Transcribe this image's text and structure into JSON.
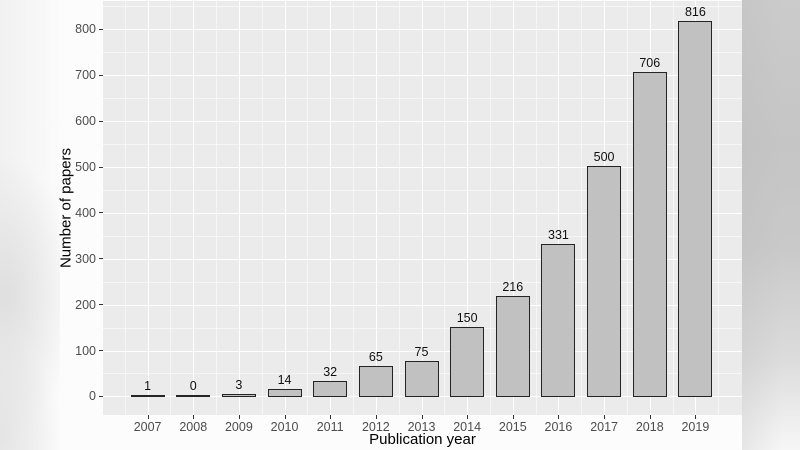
{
  "chart_data": {
    "type": "bar",
    "title": "",
    "xlabel": "Publication year",
    "ylabel": "Number of papers",
    "categories": [
      "2007",
      "2008",
      "2009",
      "2010",
      "2011",
      "2012",
      "2013",
      "2014",
      "2015",
      "2016",
      "2017",
      "2018",
      "2019"
    ],
    "values": [
      1,
      0,
      3,
      14,
      32,
      65,
      75,
      150,
      216,
      331,
      500,
      706,
      816
    ],
    "bar_labels": [
      "1",
      "0",
      "3",
      "14",
      "32",
      "65",
      "75",
      "150",
      "216",
      "331",
      "500",
      "706",
      "816"
    ],
    "ylim": [
      0,
      863
    ],
    "y_ticks": [
      0,
      100,
      200,
      300,
      400,
      500,
      600,
      700,
      800
    ],
    "grid": "major-and-minor",
    "legend_position": "none",
    "style": {
      "panel_background": "#EBEBEB",
      "grid_color": "#FFFFFF",
      "bar_fill": "#C1C1C1",
      "bar_border": "#242424",
      "tick_text_color": "#4D4D4D",
      "axis_title_color": "#000000",
      "tick_mark_color": "#333333"
    }
  }
}
